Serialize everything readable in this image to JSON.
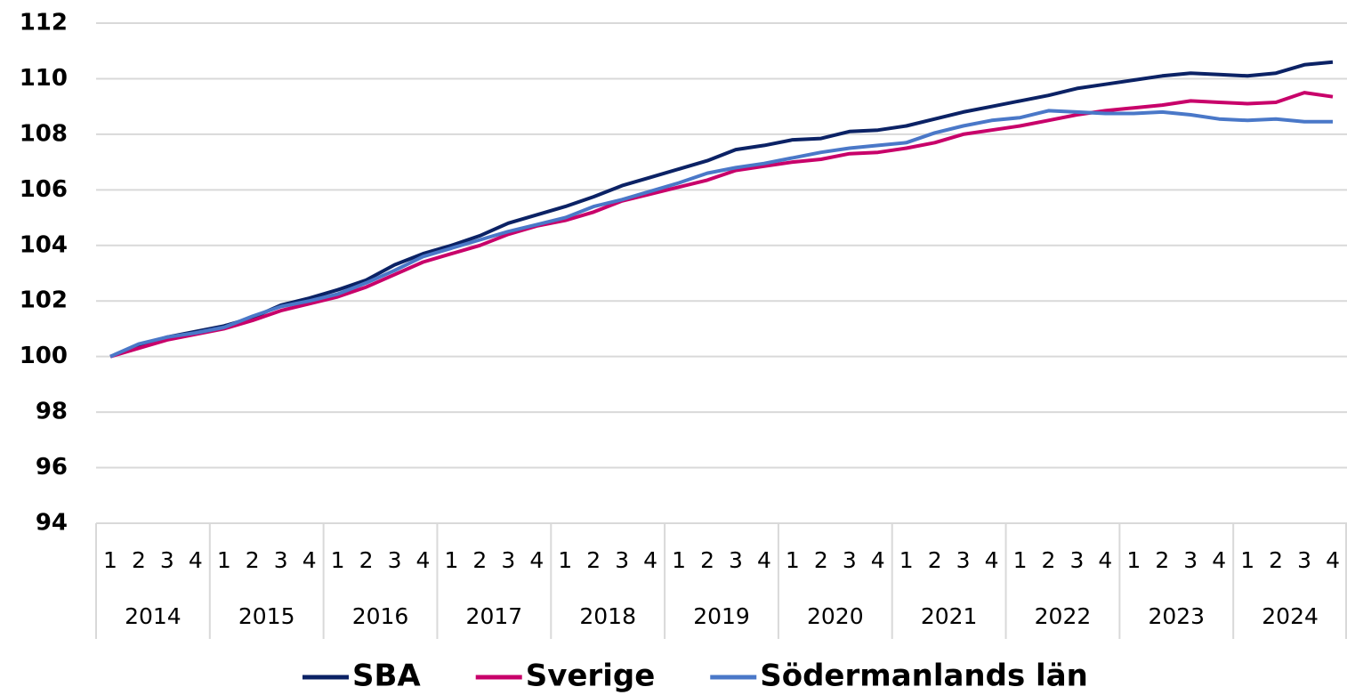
{
  "chart_data": {
    "type": "line",
    "categories": [
      "1",
      "2",
      "3",
      "4",
      "1",
      "2",
      "3",
      "4",
      "1",
      "2",
      "3",
      "4",
      "1",
      "2",
      "3",
      "4",
      "1",
      "2",
      "3",
      "4",
      "1",
      "2",
      "3",
      "4",
      "1",
      "2",
      "3",
      "4",
      "1",
      "2",
      "3",
      "4",
      "1",
      "2",
      "3",
      "4",
      "1",
      "2",
      "3",
      "4",
      "1",
      "2",
      "3",
      "4"
    ],
    "groups": [
      "2014",
      "2015",
      "2016",
      "2017",
      "2018",
      "2019",
      "2020",
      "2021",
      "2022",
      "2023",
      "2024"
    ],
    "series": [
      {
        "name": "SBA",
        "color": "#0b2265",
        "values": [
          100,
          100.4,
          100.7,
          100.9,
          101.1,
          101.4,
          101.85,
          102.1,
          102.4,
          102.75,
          103.3,
          103.7,
          104.0,
          104.35,
          104.8,
          105.1,
          105.4,
          105.75,
          106.15,
          106.45,
          106.75,
          107.05,
          107.45,
          107.6,
          107.8,
          107.85,
          108.1,
          108.15,
          108.3,
          108.55,
          108.8,
          109.0,
          109.2,
          109.4,
          109.65,
          109.8,
          109.95,
          110.1,
          110.2,
          110.15,
          110.1,
          110.2,
          110.5,
          110.6
        ]
      },
      {
        "name": "Sverige",
        "color": "#c8006a",
        "values": [
          100,
          100.3,
          100.6,
          100.8,
          101.0,
          101.3,
          101.65,
          101.9,
          102.15,
          102.5,
          102.95,
          103.4,
          103.7,
          104.0,
          104.4,
          104.7,
          104.9,
          105.2,
          105.6,
          105.85,
          106.1,
          106.35,
          106.7,
          106.85,
          107.0,
          107.1,
          107.3,
          107.35,
          107.5,
          107.7,
          108.0,
          108.15,
          108.3,
          108.5,
          108.7,
          108.85,
          108.95,
          109.05,
          109.2,
          109.15,
          109.1,
          109.15,
          109.5,
          109.35
        ]
      },
      {
        "name": "Södermanlands län",
        "color": "#4a78c8",
        "values": [
          100,
          100.45,
          100.7,
          100.85,
          101.05,
          101.45,
          101.8,
          102.0,
          102.25,
          102.65,
          103.1,
          103.6,
          103.9,
          104.2,
          104.5,
          104.75,
          105.0,
          105.4,
          105.65,
          105.95,
          106.25,
          106.6,
          106.8,
          106.95,
          107.15,
          107.35,
          107.5,
          107.6,
          107.7,
          108.05,
          108.3,
          108.5,
          108.6,
          108.85,
          108.8,
          108.75,
          108.75,
          108.8,
          108.7,
          108.55,
          108.5,
          108.55,
          108.45,
          108.45
        ]
      }
    ],
    "ylim": [
      94,
      112
    ],
    "yticks": [
      94,
      96,
      98,
      100,
      102,
      104,
      106,
      108,
      110,
      112
    ],
    "grid": true,
    "legend": "bottom"
  }
}
